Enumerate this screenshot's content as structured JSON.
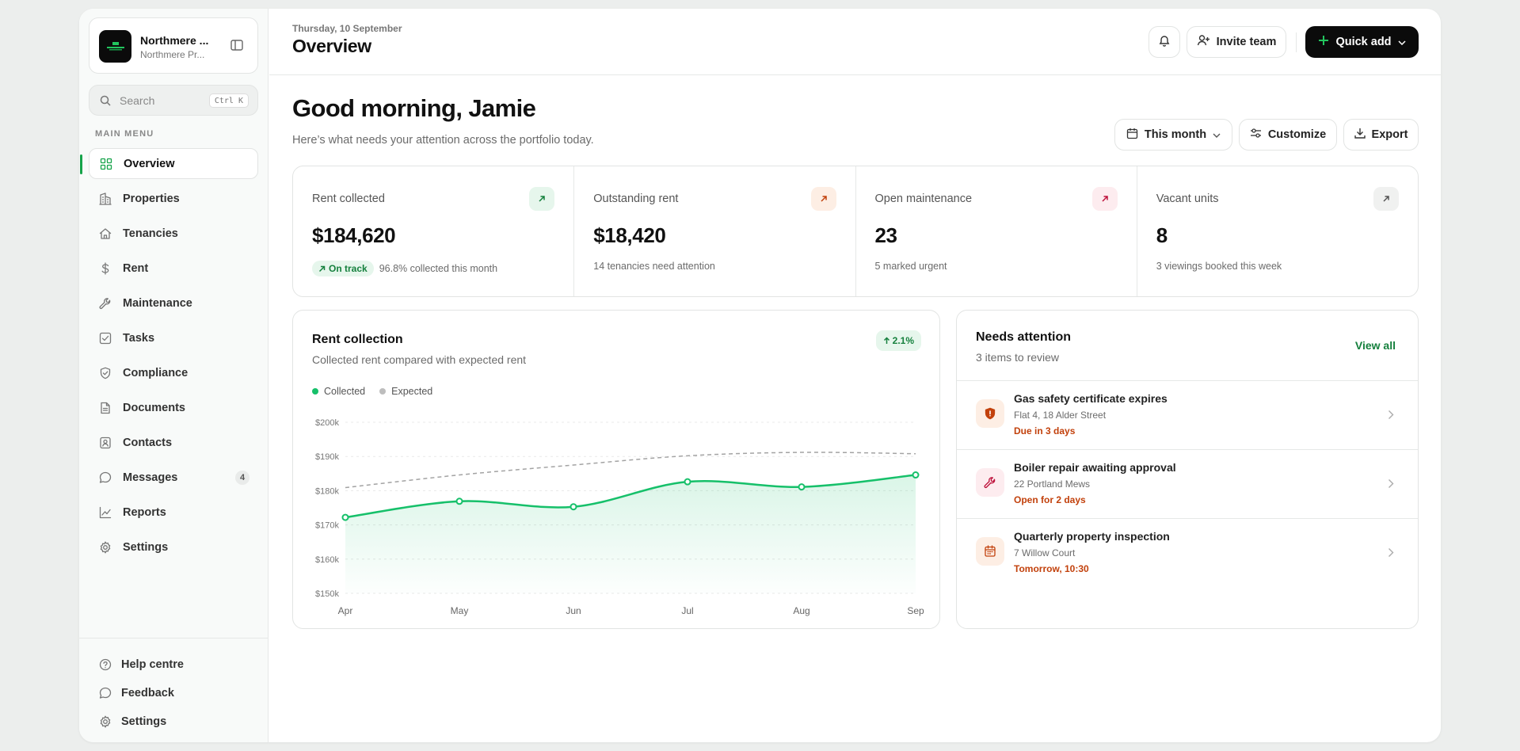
{
  "sidebar": {
    "brand_name": "Northmere ...",
    "brand_sub": "Northmere Pr...",
    "search_placeholder": "Search",
    "search_shortcut": "Ctrl K",
    "menu_label": "MAIN MENU",
    "items": [
      {
        "label": "Overview",
        "icon": "grid-icon",
        "active": true
      },
      {
        "label": "Properties",
        "icon": "building-icon"
      },
      {
        "label": "Tenancies",
        "icon": "home-icon"
      },
      {
        "label": "Rent",
        "icon": "dollar-icon"
      },
      {
        "label": "Maintenance",
        "icon": "wrench-icon"
      },
      {
        "label": "Tasks",
        "icon": "checkbox-icon"
      },
      {
        "label": "Compliance",
        "icon": "shield-icon"
      },
      {
        "label": "Documents",
        "icon": "document-icon"
      },
      {
        "label": "Contacts",
        "icon": "contact-card-icon"
      },
      {
        "label": "Messages",
        "icon": "chat-icon",
        "badge": "4"
      },
      {
        "label": "Reports",
        "icon": "chart-line-icon"
      },
      {
        "label": "Settings",
        "icon": "gear-icon"
      }
    ],
    "footer": [
      {
        "label": "Help centre",
        "icon": "help-icon"
      },
      {
        "label": "Feedback",
        "icon": "chat-icon"
      },
      {
        "label": "Settings",
        "icon": "gear-icon"
      }
    ]
  },
  "header": {
    "date": "Thursday, 10 September",
    "title": "Overview",
    "invite_label": "Invite team",
    "quick_add_label": "Quick add"
  },
  "main": {
    "greeting": "Good morning, Jamie",
    "greeting_sub": "Here’s what needs your attention across the portfolio today.",
    "period_label": "This month",
    "customize_label": "Customize",
    "export_label": "Export"
  },
  "kpis": [
    {
      "label": "Rent collected",
      "value": "$184,620",
      "badge": "On track",
      "note": "96.8% collected this month",
      "accent": "#e6f6ec",
      "arrow_color": "#15803d"
    },
    {
      "label": "Outstanding rent",
      "value": "$18,420",
      "note": "14 tenancies need attention",
      "accent": "#fdeee4",
      "arrow_color": "#c2410c"
    },
    {
      "label": "Open maintenance",
      "value": "23",
      "note": "5 marked urgent",
      "accent": "#fdecef",
      "arrow_color": "#be123c"
    },
    {
      "label": "Vacant units",
      "value": "8",
      "note": "3 viewings booked this week",
      "accent": "#f0f1f0",
      "arrow_color": "#555555"
    }
  ],
  "rent_chart": {
    "title": "Rent collection",
    "subtitle": "Collected rent compared with expected rent",
    "change": "2.1%",
    "legend_collected": "Collected",
    "legend_expected": "Expected"
  },
  "chart_data": {
    "type": "area",
    "title": "Rent collection",
    "categories": [
      "Apr",
      "May",
      "Jun",
      "Jul",
      "Aug",
      "Sep"
    ],
    "series": [
      {
        "name": "Collected",
        "values": [
          172.2,
          176.9,
          175.3,
          182.6,
          181.1,
          184.6
        ],
        "color": "#16c06a"
      },
      {
        "name": "Expected",
        "values": [
          180.9,
          184.6,
          187.5,
          190.2,
          191.2,
          190.8
        ],
        "color": "#a3a3a3"
      }
    ],
    "y_ticks": [
      "$150k",
      "$160k",
      "$170k",
      "$180k",
      "$190k",
      "$200k"
    ],
    "ylim": [
      150,
      200
    ],
    "unit": "k",
    "grid": true,
    "legend": "top-left"
  },
  "attention": {
    "title": "Needs attention",
    "subtitle": "3 items to review",
    "view_all": "View all",
    "items": [
      {
        "title": "Gas safety certificate expires",
        "address": "Flat 4, 18 Alder Street",
        "due": "Due in 3 days",
        "icon": "shield-alert-icon",
        "bg": "#fdeee4",
        "color": "#c2410c"
      },
      {
        "title": "Boiler repair awaiting approval",
        "address": "22 Portland Mews",
        "due": "Open for 2 days",
        "icon": "wrench-icon",
        "bg": "#fdecef",
        "color": "#be123c"
      },
      {
        "title": "Quarterly property inspection",
        "address": "7 Willow Court",
        "due": "Tomorrow, 10:30",
        "icon": "calendar-icon",
        "bg": "#fdeee4",
        "color": "#c2410c"
      }
    ]
  }
}
